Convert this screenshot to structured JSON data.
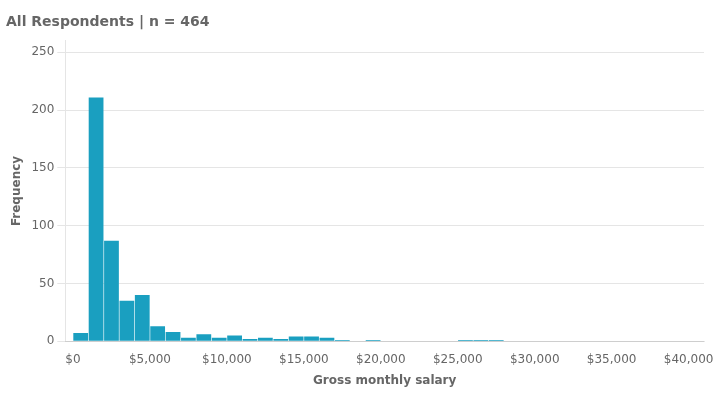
{
  "chart_data": {
    "type": "histogram",
    "title": "All Respondents | n = 464",
    "x_label": "Gross monthly salary",
    "y_label": "Frequency",
    "bins": [
      0,
      1000,
      2000,
      3000,
      4000,
      5000,
      6000,
      7000,
      8000,
      9000,
      10000,
      11000,
      12000,
      13000,
      14000,
      15000,
      16000,
      17000,
      18000,
      19000,
      20000,
      21000,
      22000,
      23000,
      24000,
      25000,
      26000,
      27000,
      28000,
      29000,
      30000,
      31000,
      32000,
      33000,
      34000,
      35000,
      36000,
      37000,
      38000,
      39000,
      40000
    ],
    "values": [
      7,
      211,
      87,
      35,
      40,
      13,
      8,
      3,
      6,
      3,
      5,
      2,
      3,
      2,
      4,
      4,
      3,
      1,
      0,
      1,
      0,
      0,
      0,
      0,
      0,
      1,
      1,
      1,
      0,
      0,
      0,
      0,
      0,
      0,
      0,
      0,
      0,
      0,
      0,
      0
    ],
    "color": "#1a9fc0",
    "xlim": [
      -500,
      41000
    ],
    "ylim": [
      0,
      260
    ],
    "xticks": [
      {
        "value": 0,
        "label": "$0"
      },
      {
        "value": 5000,
        "label": "$5,000"
      },
      {
        "value": 10000,
        "label": "$10,000"
      },
      {
        "value": 15000,
        "label": "$15,000"
      },
      {
        "value": 20000,
        "label": "$20,000"
      },
      {
        "value": 25000,
        "label": "$25,000"
      },
      {
        "value": 30000,
        "label": "$30,000"
      },
      {
        "value": 35000,
        "label": "$35,000"
      },
      {
        "value": 40000,
        "label": "$40,000"
      }
    ],
    "yticks": [
      0,
      50,
      100,
      150,
      200,
      250
    ],
    "grid": true
  }
}
